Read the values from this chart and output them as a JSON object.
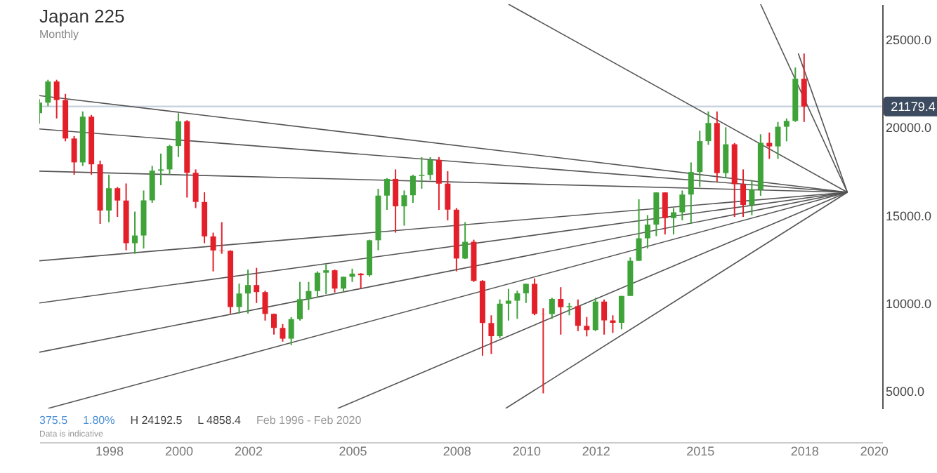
{
  "chart_data": {
    "type": "candlestick",
    "title": "Japan 225",
    "subtitle": "Monthly",
    "x": [
      "1996-01",
      "1996-04",
      "1996-07",
      "1996-10",
      "1997-01",
      "1997-04",
      "1997-07",
      "1997-10",
      "1998-01",
      "1998-04",
      "1998-07",
      "1998-10",
      "1999-01",
      "1999-04",
      "1999-07",
      "1999-10",
      "2000-01",
      "2000-04",
      "2000-07",
      "2000-10",
      "2001-01",
      "2001-04",
      "2001-07",
      "2001-10",
      "2002-01",
      "2002-04",
      "2002-07",
      "2002-10",
      "2003-01",
      "2003-04",
      "2003-07",
      "2003-10",
      "2004-01",
      "2004-04",
      "2004-07",
      "2004-10",
      "2005-01",
      "2005-04",
      "2005-07",
      "2005-10",
      "2006-01",
      "2006-04",
      "2006-07",
      "2006-10",
      "2007-01",
      "2007-04",
      "2007-07",
      "2007-10",
      "2008-01",
      "2008-04",
      "2008-07",
      "2008-10",
      "2009-01",
      "2009-04",
      "2009-07",
      "2009-10",
      "2010-01",
      "2010-04",
      "2010-07",
      "2010-10",
      "2011-01",
      "2011-04",
      "2011-07",
      "2011-10",
      "2012-01",
      "2012-04",
      "2012-07",
      "2012-10",
      "2013-01",
      "2013-04",
      "2013-07",
      "2013-10",
      "2014-01",
      "2014-04",
      "2014-07",
      "2014-10",
      "2015-01",
      "2015-04",
      "2015-07",
      "2015-10",
      "2016-01",
      "2016-04",
      "2016-07",
      "2016-10",
      "2017-01",
      "2017-04",
      "2017-07",
      "2017-10",
      "2018-01"
    ],
    "series": [
      {
        "ohlc": [
          [
            20800,
            21600,
            20200,
            21400
          ],
          [
            21400,
            22700,
            21200,
            22600
          ],
          [
            22600,
            22700,
            20500,
            21550
          ],
          [
            21550,
            21900,
            19200,
            19360
          ],
          [
            19360,
            19500,
            17300,
            18000
          ],
          [
            18000,
            20900,
            17800,
            20600
          ],
          [
            20600,
            20700,
            17300,
            17890
          ],
          [
            17890,
            18100,
            14500,
            15260
          ],
          [
            15260,
            17300,
            14600,
            16530
          ],
          [
            16530,
            16600,
            14900,
            15830
          ],
          [
            15830,
            16800,
            13000,
            13400
          ],
          [
            13400,
            15200,
            12800,
            13840
          ],
          [
            13840,
            16400,
            13100,
            15840
          ],
          [
            15840,
            17800,
            15700,
            17530
          ],
          [
            17530,
            18500,
            16700,
            17600
          ],
          [
            17600,
            19000,
            17300,
            18930
          ],
          [
            18930,
            20800,
            18300,
            20340
          ],
          [
            20340,
            20400,
            16000,
            17410
          ],
          [
            17410,
            17600,
            15400,
            15750
          ],
          [
            15750,
            16300,
            13400,
            13790
          ],
          [
            13790,
            14000,
            11800,
            12990
          ],
          [
            12990,
            14600,
            12800,
            12970
          ],
          [
            12970,
            13000,
            9400,
            9770
          ],
          [
            9770,
            11100,
            9400,
            10540
          ],
          [
            10540,
            11900,
            9400,
            11020
          ],
          [
            11020,
            12000,
            10000,
            10620
          ],
          [
            10620,
            10700,
            9000,
            9380
          ],
          [
            9380,
            9400,
            8200,
            8580
          ],
          [
            8580,
            8800,
            7800,
            7970
          ],
          [
            7970,
            9200,
            7600,
            9080
          ],
          [
            9080,
            11200,
            9000,
            10220
          ],
          [
            10220,
            11200,
            9600,
            10680
          ],
          [
            10680,
            11800,
            10300,
            11720
          ],
          [
            11720,
            12200,
            10500,
            11860
          ],
          [
            11860,
            11900,
            10600,
            10820
          ],
          [
            10820,
            11500,
            10600,
            11490
          ],
          [
            11490,
            11950,
            11200,
            11670
          ],
          [
            11670,
            11700,
            10800,
            11580
          ],
          [
            11580,
            13600,
            11500,
            13570
          ],
          [
            13570,
            16500,
            13000,
            16110
          ],
          [
            16110,
            17100,
            15300,
            17060
          ],
          [
            17060,
            17600,
            14000,
            15500
          ],
          [
            15500,
            16400,
            14400,
            16130
          ],
          [
            16130,
            17300,
            15700,
            17230
          ],
          [
            17230,
            18300,
            16500,
            17290
          ],
          [
            17290,
            18300,
            17000,
            18140
          ],
          [
            18140,
            18300,
            15300,
            16790
          ],
          [
            16790,
            17500,
            14700,
            15310
          ],
          [
            15310,
            15400,
            11800,
            12530
          ],
          [
            12530,
            14600,
            12500,
            13480
          ],
          [
            13480,
            13600,
            11200,
            11260
          ],
          [
            11260,
            11300,
            7000,
            8860
          ],
          [
            8860,
            9300,
            7100,
            8110
          ],
          [
            8110,
            10200,
            8000,
            9960
          ],
          [
            9960,
            10800,
            9000,
            10130
          ],
          [
            10130,
            10700,
            9100,
            10550
          ],
          [
            10550,
            11100,
            10000,
            11090
          ],
          [
            11090,
            11400,
            9300,
            9380
          ],
          [
            9380,
            9700,
            4858.4,
            9370
          ],
          [
            9370,
            10300,
            9100,
            10230
          ],
          [
            10230,
            10900,
            8200,
            9760
          ],
          [
            9760,
            10000,
            9300,
            9820
          ],
          [
            9820,
            10200,
            8400,
            8700
          ],
          [
            8700,
            9200,
            8100,
            8460
          ],
          [
            8460,
            10300,
            8400,
            10080
          ],
          [
            10080,
            10200,
            8200,
            9010
          ],
          [
            9010,
            9300,
            8300,
            8870
          ],
          [
            8870,
            10400,
            8500,
            10400
          ],
          [
            10400,
            12600,
            10400,
            12400
          ],
          [
            12400,
            15900,
            12400,
            13680
          ],
          [
            13680,
            15000,
            13100,
            14460
          ],
          [
            14460,
            16300,
            13800,
            16290
          ],
          [
            16290,
            16300,
            13900,
            14830
          ],
          [
            14830,
            15400,
            13900,
            15160
          ],
          [
            15160,
            16400,
            14700,
            16170
          ],
          [
            16170,
            18000,
            14500,
            17450
          ],
          [
            17450,
            19800,
            16600,
            19210
          ],
          [
            19210,
            20900,
            19000,
            20240
          ],
          [
            20240,
            20900,
            16900,
            17390
          ],
          [
            17390,
            20000,
            17100,
            19030
          ],
          [
            19030,
            19100,
            14900,
            16760
          ],
          [
            16760,
            17600,
            14900,
            15580
          ],
          [
            15580,
            17000,
            15000,
            16450
          ],
          [
            16450,
            19600,
            16100,
            19110
          ],
          [
            19110,
            19700,
            18200,
            18910
          ],
          [
            18910,
            20300,
            18200,
            20030
          ],
          [
            20030,
            20500,
            19200,
            20360
          ],
          [
            20360,
            23400,
            20300,
            22760
          ],
          [
            22760,
            24192.5,
            20300,
            21179.4
          ]
        ],
        "colors": [
          "#3fa33a",
          "#3fa33a",
          "#e3202a",
          "#e3202a",
          "#e3202a",
          "#3fa33a",
          "#e3202a",
          "#e3202a",
          "#3fa33a",
          "#e3202a",
          "#e3202a",
          "#3fa33a",
          "#3fa33a",
          "#3fa33a",
          "#3fa33a",
          "#3fa33a",
          "#3fa33a",
          "#e3202a",
          "#e3202a",
          "#e3202a",
          "#e3202a",
          "#e3202a",
          "#e3202a",
          "#3fa33a",
          "#3fa33a",
          "#e3202a",
          "#e3202a",
          "#e3202a",
          "#e3202a",
          "#3fa33a",
          "#3fa33a",
          "#3fa33a",
          "#3fa33a",
          "#3fa33a",
          "#e3202a",
          "#3fa33a",
          "#3fa33a",
          "#e3202a",
          "#3fa33a",
          "#3fa33a",
          "#3fa33a",
          "#e3202a",
          "#3fa33a",
          "#3fa33a",
          "#3fa33a",
          "#3fa33a",
          "#e3202a",
          "#e3202a",
          "#e3202a",
          "#3fa33a",
          "#e3202a",
          "#e3202a",
          "#e3202a",
          "#3fa33a",
          "#3fa33a",
          "#3fa33a",
          "#3fa33a",
          "#e3202a",
          "#e3202a",
          "#3fa33a",
          "#e3202a",
          "#3fa33a",
          "#e3202a",
          "#e3202a",
          "#3fa33a",
          "#e3202a",
          "#e3202a",
          "#3fa33a",
          "#3fa33a",
          "#3fa33a",
          "#3fa33a",
          "#3fa33a",
          "#e3202a",
          "#3fa33a",
          "#3fa33a",
          "#3fa33a",
          "#3fa33a",
          "#3fa33a",
          "#e3202a",
          "#3fa33a",
          "#e3202a",
          "#e3202a",
          "#3fa33a",
          "#3fa33a",
          "#e3202a",
          "#3fa33a",
          "#3fa33a",
          "#3fa33a",
          "#e3202a"
        ]
      },
      {
        "type": "line",
        "x": [
          "1996-01",
          "2019-04"
        ],
        "values": [
          21800,
          16300
        ],
        "color": "#555555"
      },
      {
        "type": "line",
        "x": [
          "1996-01",
          "2019-04"
        ],
        "values": [
          19900,
          16300
        ],
        "color": "#555555"
      },
      {
        "type": "line",
        "x": [
          "1996-01",
          "2019-04"
        ],
        "values": [
          17500,
          16300
        ],
        "color": "#555555"
      },
      {
        "type": "line",
        "x": [
          "1996-01",
          "2019-04"
        ],
        "values": [
          12400,
          16300
        ],
        "color": "#555555"
      },
      {
        "type": "line",
        "x": [
          "1996-01",
          "2019-04"
        ],
        "values": [
          10000,
          16300
        ],
        "color": "#555555"
      },
      {
        "type": "line",
        "x": [
          "1996-01",
          "2019-04"
        ],
        "values": [
          7200,
          16300
        ],
        "color": "#555555"
      },
      {
        "type": "line",
        "x": [
          "1996-04",
          "2019-04"
        ],
        "values": [
          4000,
          16300
        ],
        "color": "#555555"
      },
      {
        "type": "line",
        "x": [
          "2004-08",
          "2019-04"
        ],
        "values": [
          4000,
          16300
        ],
        "color": "#555555"
      },
      {
        "type": "line",
        "x": [
          "2009-06",
          "2019-04"
        ],
        "values": [
          4000,
          16300
        ],
        "color": "#555555"
      },
      {
        "type": "line",
        "x": [
          "2009-07",
          "2019-04"
        ],
        "values": [
          27000,
          16300
        ],
        "color": "#555555"
      },
      {
        "type": "line",
        "x": [
          "2016-10",
          "2019-04"
        ],
        "values": [
          27000,
          16300
        ],
        "color": "#555555"
      },
      {
        "type": "line",
        "x": [
          "2017-11",
          "2019-04"
        ],
        "values": [
          24200,
          16300
        ],
        "color": "#555555"
      }
    ],
    "xlim": [
      "1996-01",
      "2020-04"
    ],
    "xticks": [
      "1998",
      "2000",
      "2002",
      "2005",
      "2008",
      "2010",
      "2012",
      "2015",
      "2018",
      "2020"
    ],
    "ylim": [
      4000,
      27000
    ],
    "yticks": [
      {
        "value": 5000,
        "label": "5000.0"
      },
      {
        "value": 10000,
        "label": "10000.0"
      },
      {
        "value": 15000,
        "label": "15000.0"
      },
      {
        "value": 20000,
        "label": "20000.0"
      },
      {
        "value": 25000,
        "label": "25000.0"
      }
    ],
    "ref_lines": [
      {
        "axis": "y",
        "value": 21179.4,
        "label": "21179.4",
        "color": "#c9d3de"
      }
    ],
    "annotations": [
      "375.5",
      "1.80%",
      "H 24192.5",
      "L 4858.4",
      "Feb 1996 - Feb 2020",
      "Data is indicative"
    ]
  }
}
